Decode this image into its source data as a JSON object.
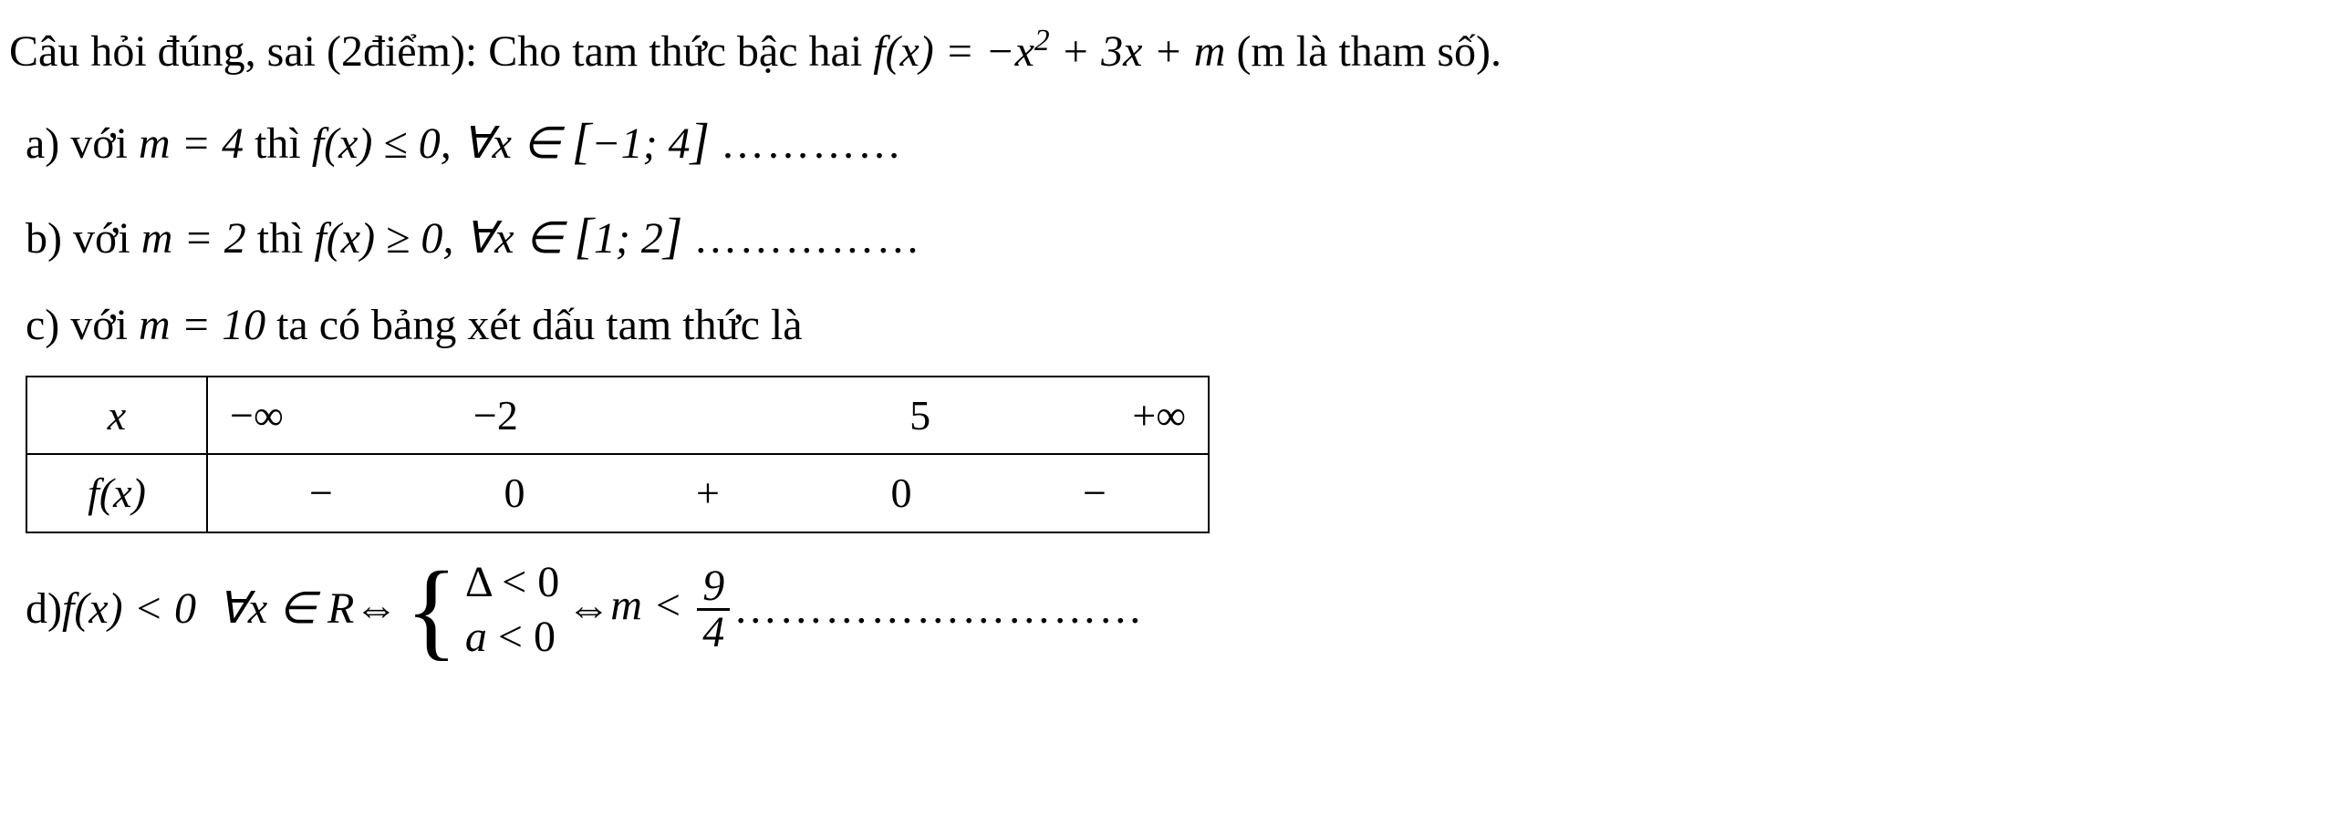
{
  "intro": {
    "prefix": "Câu hỏi đúng, sai (2điểm): Cho tam thức bậc hai  ",
    "formula": "f(x) = −x² + 3x + m",
    "suffix": "  (m là tham số)."
  },
  "a": {
    "prefix": "a) với  ",
    "cond": "m = 4",
    "mid": " thì  ",
    "stmt": "f(x) ≤ 0, ∀x ∈ [−1; 4]",
    "dots": " …………"
  },
  "b": {
    "prefix": "b) với  ",
    "cond": "m = 2",
    "mid": " thì  ",
    "stmt": "f(x) ≥ 0, ∀x ∈ [1; 2]",
    "dots": " ……………"
  },
  "c": {
    "prefix": "c) với  ",
    "cond": "m = 10",
    "suffix": "  ta có bảng xét dấu tam thức là"
  },
  "table": {
    "row_x": {
      "label": "x",
      "vals": [
        "−∞",
        "−2",
        "5",
        "+∞"
      ]
    },
    "row_f": {
      "label": "f(x)",
      "vals": [
        "−",
        "0",
        "+",
        "0",
        "−"
      ]
    }
  },
  "d": {
    "prefix": "d)  ",
    "lhs": "f(x) < 0  ∀x ∈ R",
    "iff1": " ⇔ ",
    "brace_top": "Δ < 0",
    "brace_bot": "a < 0",
    "iff2": " ⇔ ",
    "rhs_m": "m < ",
    "frac_num": "9",
    "frac_den": "4",
    "dots": " ………………………"
  }
}
